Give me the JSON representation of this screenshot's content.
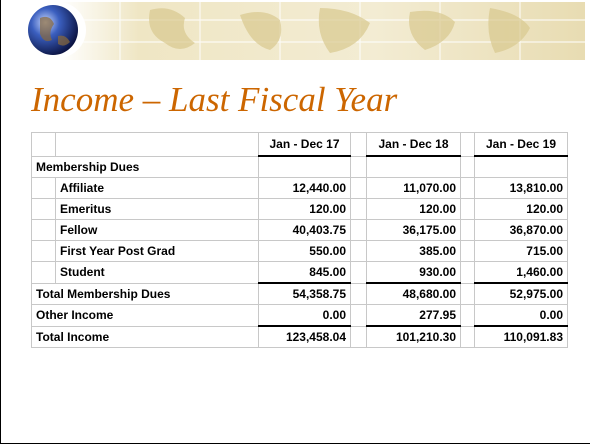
{
  "title": "Income – Last Fiscal Year",
  "table": {
    "headers": [
      "Jan - Dec 17",
      "Jan - Dec 18",
      "Jan - Dec 19"
    ],
    "sections": [
      {
        "label": "Membership Dues",
        "items": [
          {
            "label": "Affiliate",
            "values": [
              "12,440.00",
              "11,070.00",
              "13,810.00"
            ]
          },
          {
            "label": "Emeritus",
            "values": [
              "120.00",
              "120.00",
              "120.00"
            ]
          },
          {
            "label": "Fellow",
            "values": [
              "40,403.75",
              "36,175.00",
              "36,870.00"
            ]
          },
          {
            "label": "First Year Post Grad",
            "values": [
              "550.00",
              "385.00",
              "715.00"
            ]
          },
          {
            "label": "Student",
            "values": [
              "845.00",
              "930.00",
              "1,460.00"
            ]
          }
        ]
      }
    ],
    "totals": [
      {
        "label": "Total Membership Dues",
        "values": [
          "54,358.75",
          "48,680.00",
          "52,975.00"
        ]
      },
      {
        "label": "Other Income",
        "values": [
          "0.00",
          "277.95",
          "0.00"
        ]
      },
      {
        "label": "Total Income",
        "values": [
          "123,458.04",
          "101,210.30",
          "110,091.83"
        ]
      }
    ]
  }
}
